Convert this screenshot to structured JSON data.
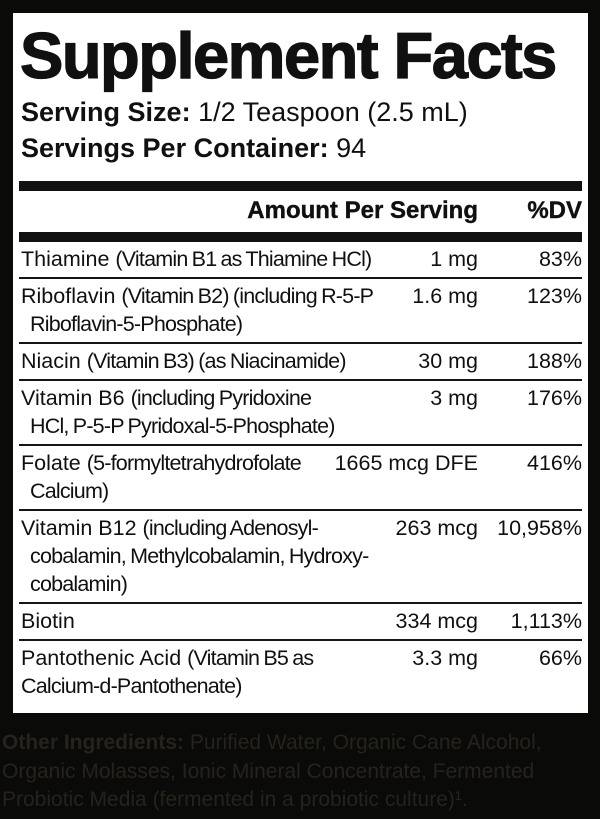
{
  "label": {
    "title": "Supplement Facts",
    "serving_size_label": "Serving Size:",
    "serving_size_value": "1/2 Teaspoon (2.5 mL)",
    "servings_per_container_label": "Servings Per Container:",
    "servings_per_container_value": "94",
    "header": {
      "amount": "Amount Per Serving",
      "dv": "%DV"
    },
    "rows": [
      {
        "name": "Thiamine",
        "paren": "(Vitamin B1 as Thiamine HCl)",
        "amount": "1 mg",
        "dv": "83%"
      },
      {
        "name": "Riboflavin",
        "paren": "(Vitamin B2) (including R-5-P",
        "line2": "Riboflavin-5-Phosphate)",
        "amount": "1.6 mg",
        "dv": "123%"
      },
      {
        "name": "Niacin",
        "paren": "(Vitamin B3) (as Niacinamide)",
        "amount": "30 mg",
        "dv": "188%"
      },
      {
        "name": "Vitamin B6",
        "paren": "(including Pyridoxine",
        "line2": "HCl, P-5-P Pyridoxal-5-Phosphate)",
        "amount": "3 mg",
        "dv": "176%"
      },
      {
        "name": "Folate",
        "paren": "(5-formyltetrahydrofolate",
        "line2": "Calcium)",
        "amount": "1665 mcg DFE",
        "dv": "416%"
      },
      {
        "name": "Vitamin B12",
        "paren": "(including Adenosyl-",
        "line2": "cobalamin, Methylcobalamin, Hydroxy-",
        "line3": "cobalamin)",
        "amount": "263 mcg",
        "dv": "10,958%"
      },
      {
        "name": "Biotin",
        "amount": "334 mcg",
        "dv": "1,113%"
      },
      {
        "name": "Pantothenic Acid",
        "paren": "(Vitamin B5 as",
        "line2": "Calcium-d-Pantothenate)",
        "amount": "3.3 mg",
        "dv": "66%"
      }
    ],
    "other_ingredients": {
      "label": "Other Ingredients:",
      "line1_rest": " Purified Water, Organic Cane Alcohol,",
      "line2": "Organic Molasses, Ionic Mineral Concentrate, Fermented",
      "line3": "Probiotic Media (fermented in a probiotic culture)¹."
    },
    "colors": {
      "background": "#0a0a09",
      "panel": "#ffffff",
      "ink": "#101010",
      "footer_text": "#27231c"
    }
  }
}
